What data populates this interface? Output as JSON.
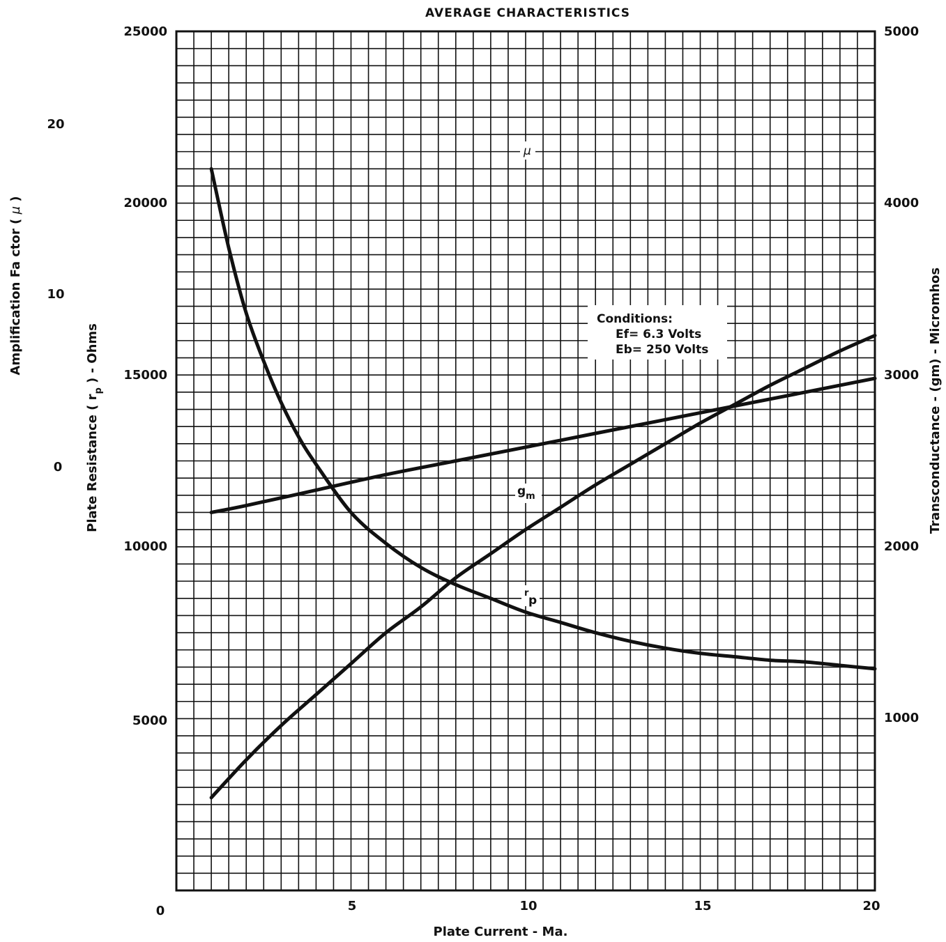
{
  "chart_data": {
    "type": "line",
    "title": "AVERAGE CHARACTERISTICS",
    "xlabel": "Plate Current - Ma.",
    "xlim": [
      0,
      20
    ],
    "x_ticks": [
      "0",
      "5",
      "10",
      "15",
      "20"
    ],
    "grid": true,
    "axes": {
      "rp": {
        "label_pre": "Plate Resistance ( r",
        "label_sub": "p",
        "label_post": " ) - Ohms",
        "range": [
          0,
          25000
        ],
        "ticks": [
          "5000",
          "10000",
          "15000",
          "20000",
          "25000"
        ]
      },
      "mu": {
        "label_pre": "Amplification Fa ctor ( ",
        "label_mu": "µ",
        "label_post": " )",
        "range": [
          -10,
          40
        ],
        "ticks": [
          "0",
          "10",
          "20"
        ]
      },
      "gm": {
        "label": "Transconductance - (gm) - Micromhos",
        "range": [
          0,
          5000
        ],
        "ticks": [
          "1000",
          "2000",
          "3000",
          "4000",
          "5000"
        ]
      }
    },
    "series": [
      {
        "name": "µ",
        "axis": "mu",
        "x": [
          1,
          2,
          4,
          6,
          8,
          10,
          12,
          14,
          16,
          18,
          20
        ],
        "y": [
          12,
          12.4,
          13.3,
          14.2,
          15,
          15.8,
          16.6,
          17.4,
          18.2,
          19,
          19.8
        ]
      },
      {
        "name_main": "r",
        "name_sub": "p",
        "axis": "rp",
        "x": [
          1,
          1.5,
          2,
          2.5,
          3,
          3.5,
          4,
          5,
          6,
          7,
          8,
          9,
          10,
          11,
          12,
          13,
          14,
          15,
          16,
          17,
          18,
          19,
          20
        ],
        "y": [
          21000,
          18700,
          16800,
          15400,
          14200,
          13200,
          12400,
          11000,
          10100,
          9400,
          8900,
          8500,
          8100,
          7800,
          7500,
          7250,
          7050,
          6900,
          6800,
          6700,
          6650,
          6550,
          6450
        ]
      },
      {
        "name_main": "g",
        "name_sub": "m",
        "axis": "gm",
        "x": [
          1,
          2,
          3,
          4,
          5,
          6,
          7,
          8,
          9,
          10,
          11,
          12,
          13,
          14,
          15,
          16,
          17,
          18,
          19,
          20
        ],
        "y": [
          540,
          760,
          960,
          1140,
          1320,
          1500,
          1650,
          1820,
          1960,
          2100,
          2230,
          2360,
          2480,
          2600,
          2720,
          2830,
          2940,
          3040,
          3140,
          3230
        ]
      }
    ],
    "conditions": {
      "heading": "Conditions:",
      "line1": "Ef= 6.3 Volts",
      "line2": "Eb= 250 Volts"
    }
  }
}
